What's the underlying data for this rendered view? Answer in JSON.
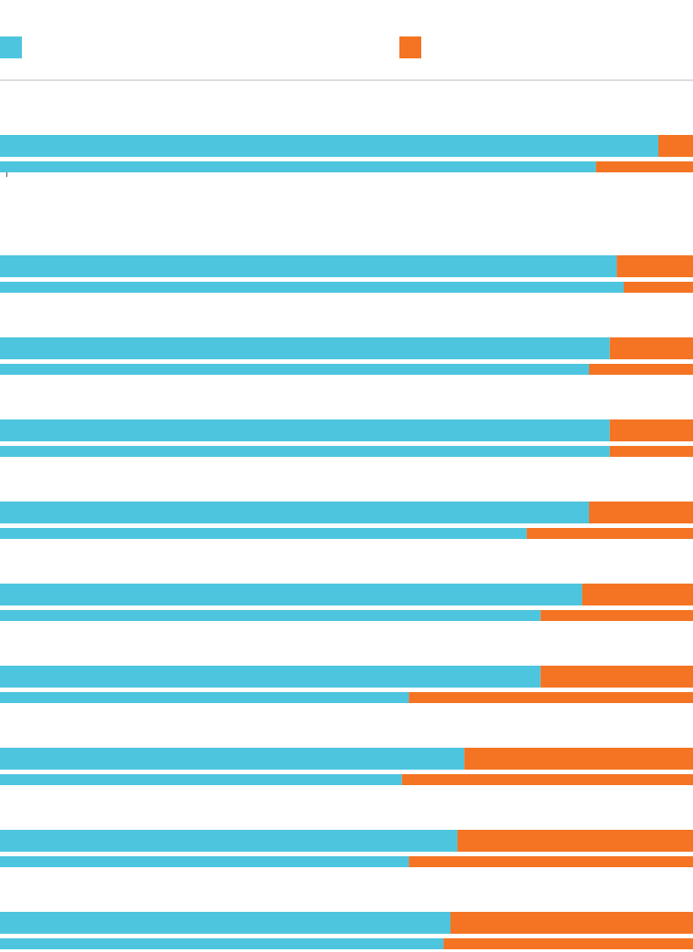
{
  "chart_data": [
    {
      "type": "bar",
      "orientation": "horizontal",
      "stacked": true,
      "xlim": [
        0,
        100
      ],
      "series": [
        {
          "color": "#4ec5de",
          "values": [
            95,
            89,
            88,
            88,
            85,
            84,
            78,
            67,
            66,
            65
          ]
        },
        {
          "color": "#f47423",
          "values": [
            5,
            11,
            12,
            12,
            15,
            16,
            22,
            33,
            34,
            35
          ]
        }
      ]
    },
    {
      "type": "bar",
      "orientation": "horizontal",
      "stacked": true,
      "xlim": [
        0,
        100
      ],
      "series": [
        {
          "color": "#4ec5de",
          "values": [
            86,
            90,
            85,
            88,
            76,
            78,
            59,
            58,
            59,
            64
          ]
        },
        {
          "color": "#f47423",
          "values": [
            14,
            10,
            15,
            12,
            24,
            22,
            41,
            42,
            41,
            36
          ]
        }
      ]
    }
  ]
}
